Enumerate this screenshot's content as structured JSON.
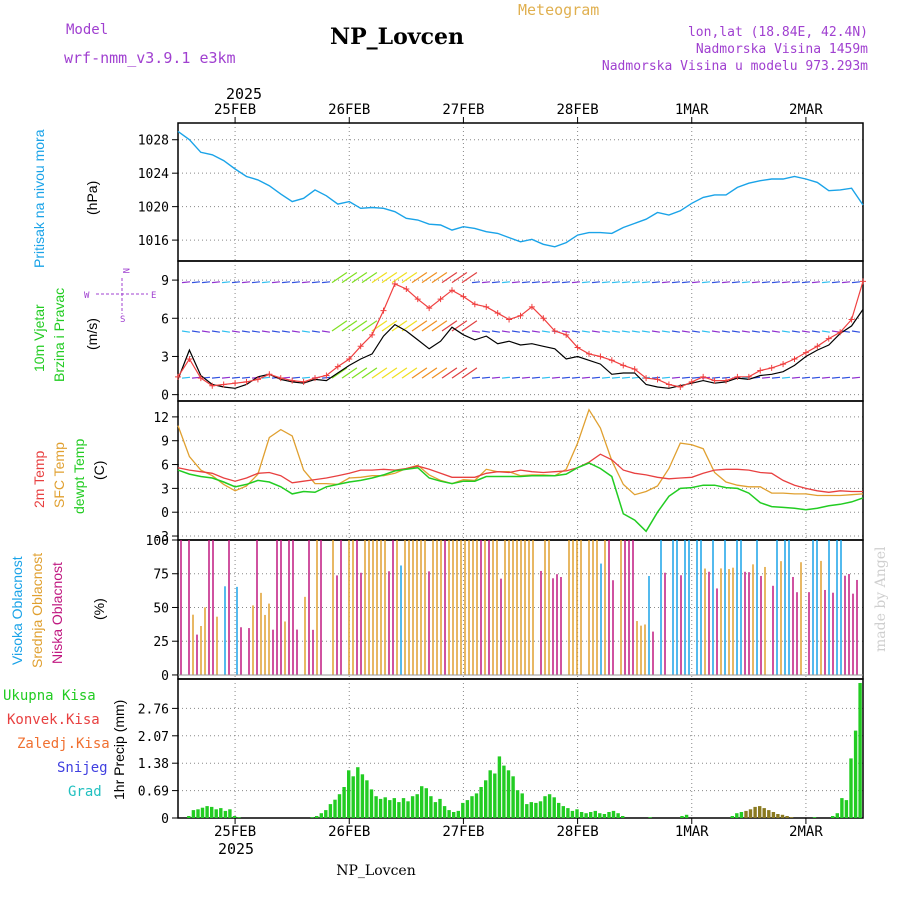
{
  "header": {
    "model_label": "Model",
    "model_name": "wrf-nmm_v3.9.1 e3km",
    "station": "NP_Lovcen",
    "meteogram": "Meteogram",
    "lonlat": "lon,lat (18.84E, 42.4N)",
    "elev": "Nadmorska Visina 1459m",
    "elev_model": "Nadmorska Visina u modelu 973.293m",
    "year_top": "2025",
    "footer_station": "NP_Lovcen",
    "watermark": "made by Angel"
  },
  "colors": {
    "pressure": "#1aa3e8",
    "wind_obs_black": "#000000",
    "gust": "#f04040",
    "temp2m": "#e84040",
    "sfc": "#e0a030",
    "dewpt": "#22cc22",
    "high_cloud": "#1aa3e8",
    "mid_cloud": "#e0a030",
    "low_cloud": "#c01880",
    "precip": "#22cc22",
    "conv": "#e84040",
    "frz": "#f07030",
    "snow": "#4040e0",
    "hail": "#22c0c0",
    "title_purple": "#a040d0",
    "meteogram_gold": "#e0b050"
  },
  "chart_data": {
    "type": "line",
    "x_ticks_top": [
      "25FEB",
      "26FEB",
      "27FEB",
      "28FEB",
      "1MAR",
      "2MAR"
    ],
    "x_ticks_bottom": [
      "25FEB",
      "26FEB",
      "27FEB",
      "28FEB",
      "1MAR",
      "2MAR"
    ],
    "year_bottom": "2025",
    "x_range_days": [
      -0.5,
      5.5
    ],
    "panels": {
      "pressure": {
        "ylabel_main": "Pritisak na nivou mora",
        "ylabel_unit": "(hPa)",
        "yticks": [
          1016,
          1020,
          1024,
          1028
        ],
        "ylim": [
          1013.5,
          1030
        ],
        "series": [
          {
            "name": "Pritisak",
            "x": [
              -0.5,
              -0.4,
              -0.3,
              -0.2,
              -0.1,
              0,
              0.1,
              0.2,
              0.3,
              0.4,
              0.5,
              0.6,
              0.7,
              0.8,
              0.9,
              1.0,
              1.1,
              1.2,
              1.3,
              1.4,
              1.5,
              1.6,
              1.7,
              1.8,
              1.9,
              2.0,
              2.1,
              2.2,
              2.3,
              2.4,
              2.5,
              2.6,
              2.7,
              2.8,
              2.9,
              3.0,
              3.1,
              3.2,
              3.3,
              3.4,
              3.5,
              3.6,
              3.7,
              3.8,
              3.9,
              4.0,
              4.1,
              4.2,
              4.3,
              4.4,
              4.5,
              4.6,
              4.7,
              4.8,
              4.9,
              5.0,
              5.1,
              5.2,
              5.3,
              5.4,
              5.5
            ],
            "values": [
              1029,
              1028,
              1026.5,
              1026.2,
              1025.5,
              1024.5,
              1023.6,
              1023.2,
              1022.5,
              1021.5,
              1020.6,
              1021,
              1022,
              1021.3,
              1020.3,
              1020.6,
              1019.8,
              1019.9,
              1019.8,
              1019.4,
              1018.6,
              1018.4,
              1017.9,
              1017.8,
              1017.2,
              1017.6,
              1017.4,
              1017,
              1016.8,
              1016.3,
              1015.8,
              1016.1,
              1015.5,
              1015.2,
              1015.7,
              1016.6,
              1016.9,
              1016.9,
              1016.8,
              1017.5,
              1018,
              1018.5,
              1019.3,
              1019,
              1019.5,
              1020.4,
              1021.1,
              1021.4,
              1021.4,
              1022.3,
              1022.8,
              1023.1,
              1023.3,
              1023.3,
              1023.6,
              1023.3,
              1022.9,
              1021.9,
              1022,
              1022.2,
              1020.2
            ]
          }
        ]
      },
      "wind": {
        "ylabel_main": "10m Vjetar",
        "ylabel_sub": "Brzina i Pravac",
        "ylabel_unit": "(m/s)",
        "compass": {
          "n": "N",
          "s": "S",
          "e": "E",
          "w": "W"
        },
        "yticks": [
          0,
          3,
          6,
          9
        ],
        "ylim": [
          -0.5,
          10.5
        ],
        "series": [
          {
            "name": "Brzina",
            "values": [
              1.2,
              3.5,
              1.5,
              0.8,
              0.6,
              0.5,
              0.8,
              1.4,
              1.6,
              1.2,
              1.0,
              0.9,
              1.2,
              1.1,
              1.7,
              2.3,
              2.8,
              3.2,
              4.6,
              5.5,
              5.0,
              4.3,
              3.6,
              4.2,
              5.3,
              4.7,
              4.3,
              4.6,
              4.0,
              4.2,
              3.9,
              4.0,
              3.8,
              3.6,
              2.8,
              3.0,
              2.7,
              2.4,
              1.6,
              1.7,
              1.7,
              0.8,
              0.6,
              0.5,
              0.7,
              0.9,
              1.1,
              0.9,
              1.0,
              1.3,
              1.2,
              1.5,
              1.6,
              1.8,
              2.3,
              3.0,
              3.5,
              3.9,
              4.8,
              5.4,
              6.7
            ]
          },
          {
            "name": "Udar",
            "values": [
              1.4,
              2.8,
              1.3,
              0.7,
              0.8,
              0.9,
              1.0,
              1.2,
              1.6,
              1.3,
              1.1,
              1.0,
              1.3,
              1.5,
              2.2,
              2.8,
              3.8,
              4.7,
              6.6,
              8.7,
              8.3,
              7.5,
              6.8,
              7.5,
              8.2,
              7.7,
              7.1,
              6.9,
              6.4,
              5.9,
              6.2,
              6.9,
              6.0,
              5.0,
              4.7,
              3.7,
              3.2,
              3.0,
              2.7,
              2.3,
              2.0,
              1.3,
              1.2,
              0.8,
              0.6,
              1.0,
              1.4,
              1.1,
              1.1,
              1.4,
              1.4,
              1.9,
              2.1,
              2.4,
              2.8,
              3.3,
              3.8,
              4.4,
              4.9,
              5.9,
              8.9
            ]
          }
        ]
      },
      "temperature": {
        "ylabel_a": "2m Temp",
        "ylabel_b": "SFC Temp",
        "ylabel_c": "dewpt Temp",
        "ylabel_unit": "(C)",
        "yticks": [
          -3,
          0,
          3,
          6,
          9,
          12
        ],
        "ylim": [
          -3.5,
          14
        ],
        "series": [
          {
            "name": "2m Temp",
            "values": [
              5.6,
              5.3,
              5.1,
              4.9,
              4.3,
              3.9,
              4.3,
              4.9,
              5.0,
              4.6,
              3.7,
              3.9,
              4.1,
              4.3,
              4.6,
              4.9,
              5.3,
              5.3,
              5.4,
              5.3,
              5.5,
              5.8,
              5.4,
              4.9,
              4.4,
              4.4,
              4.4,
              4.9,
              5.1,
              5.0,
              5.3,
              5.1,
              5.0,
              5.1,
              5.2,
              5.6,
              6.3,
              7.3,
              6.6,
              5.3,
              4.9,
              4.7,
              4.4,
              4.2,
              4.3,
              4.4,
              4.9,
              5.3,
              5.4,
              5.4,
              5.3,
              5.0,
              4.9,
              4.0,
              3.4,
              3.0,
              2.7,
              2.5,
              2.7,
              2.6,
              2.6
            ]
          },
          {
            "name": "SFC Temp",
            "values": [
              10.9,
              7.0,
              5.3,
              4.6,
              3.5,
              2.7,
              3.3,
              4.8,
              9.4,
              10.4,
              9.6,
              5.3,
              3.6,
              3.6,
              3.5,
              4.3,
              4.4,
              4.6,
              4.6,
              4.9,
              5.5,
              5.9,
              4.7,
              4.0,
              3.6,
              4.1,
              4.0,
              5.4,
              5.1,
              5.1,
              4.6,
              4.7,
              4.7,
              4.6,
              5.4,
              8.7,
              12.9,
              10.6,
              6.5,
              3.5,
              2.2,
              2.6,
              3.3,
              5.5,
              8.7,
              8.5,
              8.0,
              5.0,
              3.8,
              3.4,
              3.2,
              3.2,
              2.4,
              2.4,
              2.3,
              2.3,
              2.1,
              2.1,
              2.1,
              2.2,
              2.3
            ]
          },
          {
            "name": "dewpt Temp",
            "values": [
              5.3,
              4.8,
              4.5,
              4.3,
              3.8,
              3.2,
              3.5,
              4.0,
              3.8,
              3.2,
              2.3,
              2.6,
              2.5,
              3.2,
              3.5,
              3.8,
              4.0,
              4.3,
              4.7,
              5.2,
              5.4,
              5.6,
              4.3,
              3.9,
              3.6,
              3.9,
              3.9,
              4.5,
              4.5,
              4.5,
              4.5,
              4.6,
              4.6,
              4.6,
              4.8,
              5.6,
              6.2,
              5.5,
              4.5,
              -0.2,
              -1.0,
              -2.4,
              0.0,
              2.0,
              3.0,
              3.1,
              3.4,
              3.4,
              3.1,
              3.0,
              2.4,
              1.2,
              0.7,
              0.6,
              0.5,
              0.3,
              0.5,
              0.8,
              1.0,
              1.3,
              1.8
            ]
          }
        ]
      },
      "clouds": {
        "ylabel_a": "Visoka Oblacnost",
        "ylabel_b": "Srednja Oblacnost",
        "ylabel_c": "Niska Oblacnost",
        "ylabel_unit": "(%)",
        "yticks": [
          0,
          25,
          50,
          75,
          100
        ],
        "ylim": [
          -3,
          100
        ]
      },
      "precip": {
        "legend": [
          "Ukupna Kisa",
          "Konvek.Kisa",
          "Zaledj.Kisa",
          "Snijeg",
          "Grad"
        ],
        "ylabel_unit": "1hr Precip (mm)",
        "yticks": [
          0,
          0.69,
          1.38,
          2.07,
          2.76
        ],
        "ylim": [
          0,
          3.5
        ],
        "series": [
          {
            "name": "Ukupna Kisa",
            "values": [
              0,
              0,
              0.05,
              0.2,
              0.22,
              0.26,
              0.3,
              0.28,
              0.22,
              0.25,
              0.18,
              0.22,
              0.05,
              0.02,
              0,
              0,
              0,
              0,
              0,
              0,
              0,
              0,
              0,
              0,
              0,
              0,
              0,
              0,
              0,
              0.02,
              0.05,
              0.12,
              0.2,
              0.35,
              0.46,
              0.6,
              0.78,
              1.2,
              1.05,
              1.28,
              1.1,
              0.95,
              0.72,
              0.55,
              0.48,
              0.52,
              0.45,
              0.5,
              0.4,
              0.5,
              0.42,
              0.55,
              0.6,
              0.8,
              0.75,
              0.55,
              0.4,
              0.48,
              0.3,
              0.2,
              0.15,
              0.18,
              0.38,
              0.45,
              0.55,
              0.62,
              0.78,
              0.95,
              1.2,
              1.12,
              1.55,
              1.32,
              1.2,
              1.05,
              0.7,
              0.62,
              0.35,
              0.4,
              0.38,
              0.42,
              0.55,
              0.6,
              0.52,
              0.38,
              0.3,
              0.25,
              0.18,
              0.22,
              0.15,
              0.12,
              0.15,
              0.18,
              0.12,
              0.1,
              0.15,
              0.18,
              0.12,
              0.05,
              0,
              0,
              0,
              0,
              0,
              0.02,
              0,
              0,
              0,
              0,
              0,
              0,
              0.05,
              0.08,
              0,
              0,
              0,
              0,
              0,
              0,
              0,
              0,
              0,
              0.05,
              0.12,
              0.15,
              0.18,
              0.22,
              0.28,
              0.3,
              0.25,
              0.2,
              0.15,
              0.1,
              0.08,
              0.05,
              0.02,
              0,
              0,
              0,
              0,
              0.02,
              0,
              0,
              0,
              0.05,
              0.12,
              0.5,
              0.45,
              1.5,
              2.2,
              3.4
            ]
          }
        ]
      }
    }
  }
}
